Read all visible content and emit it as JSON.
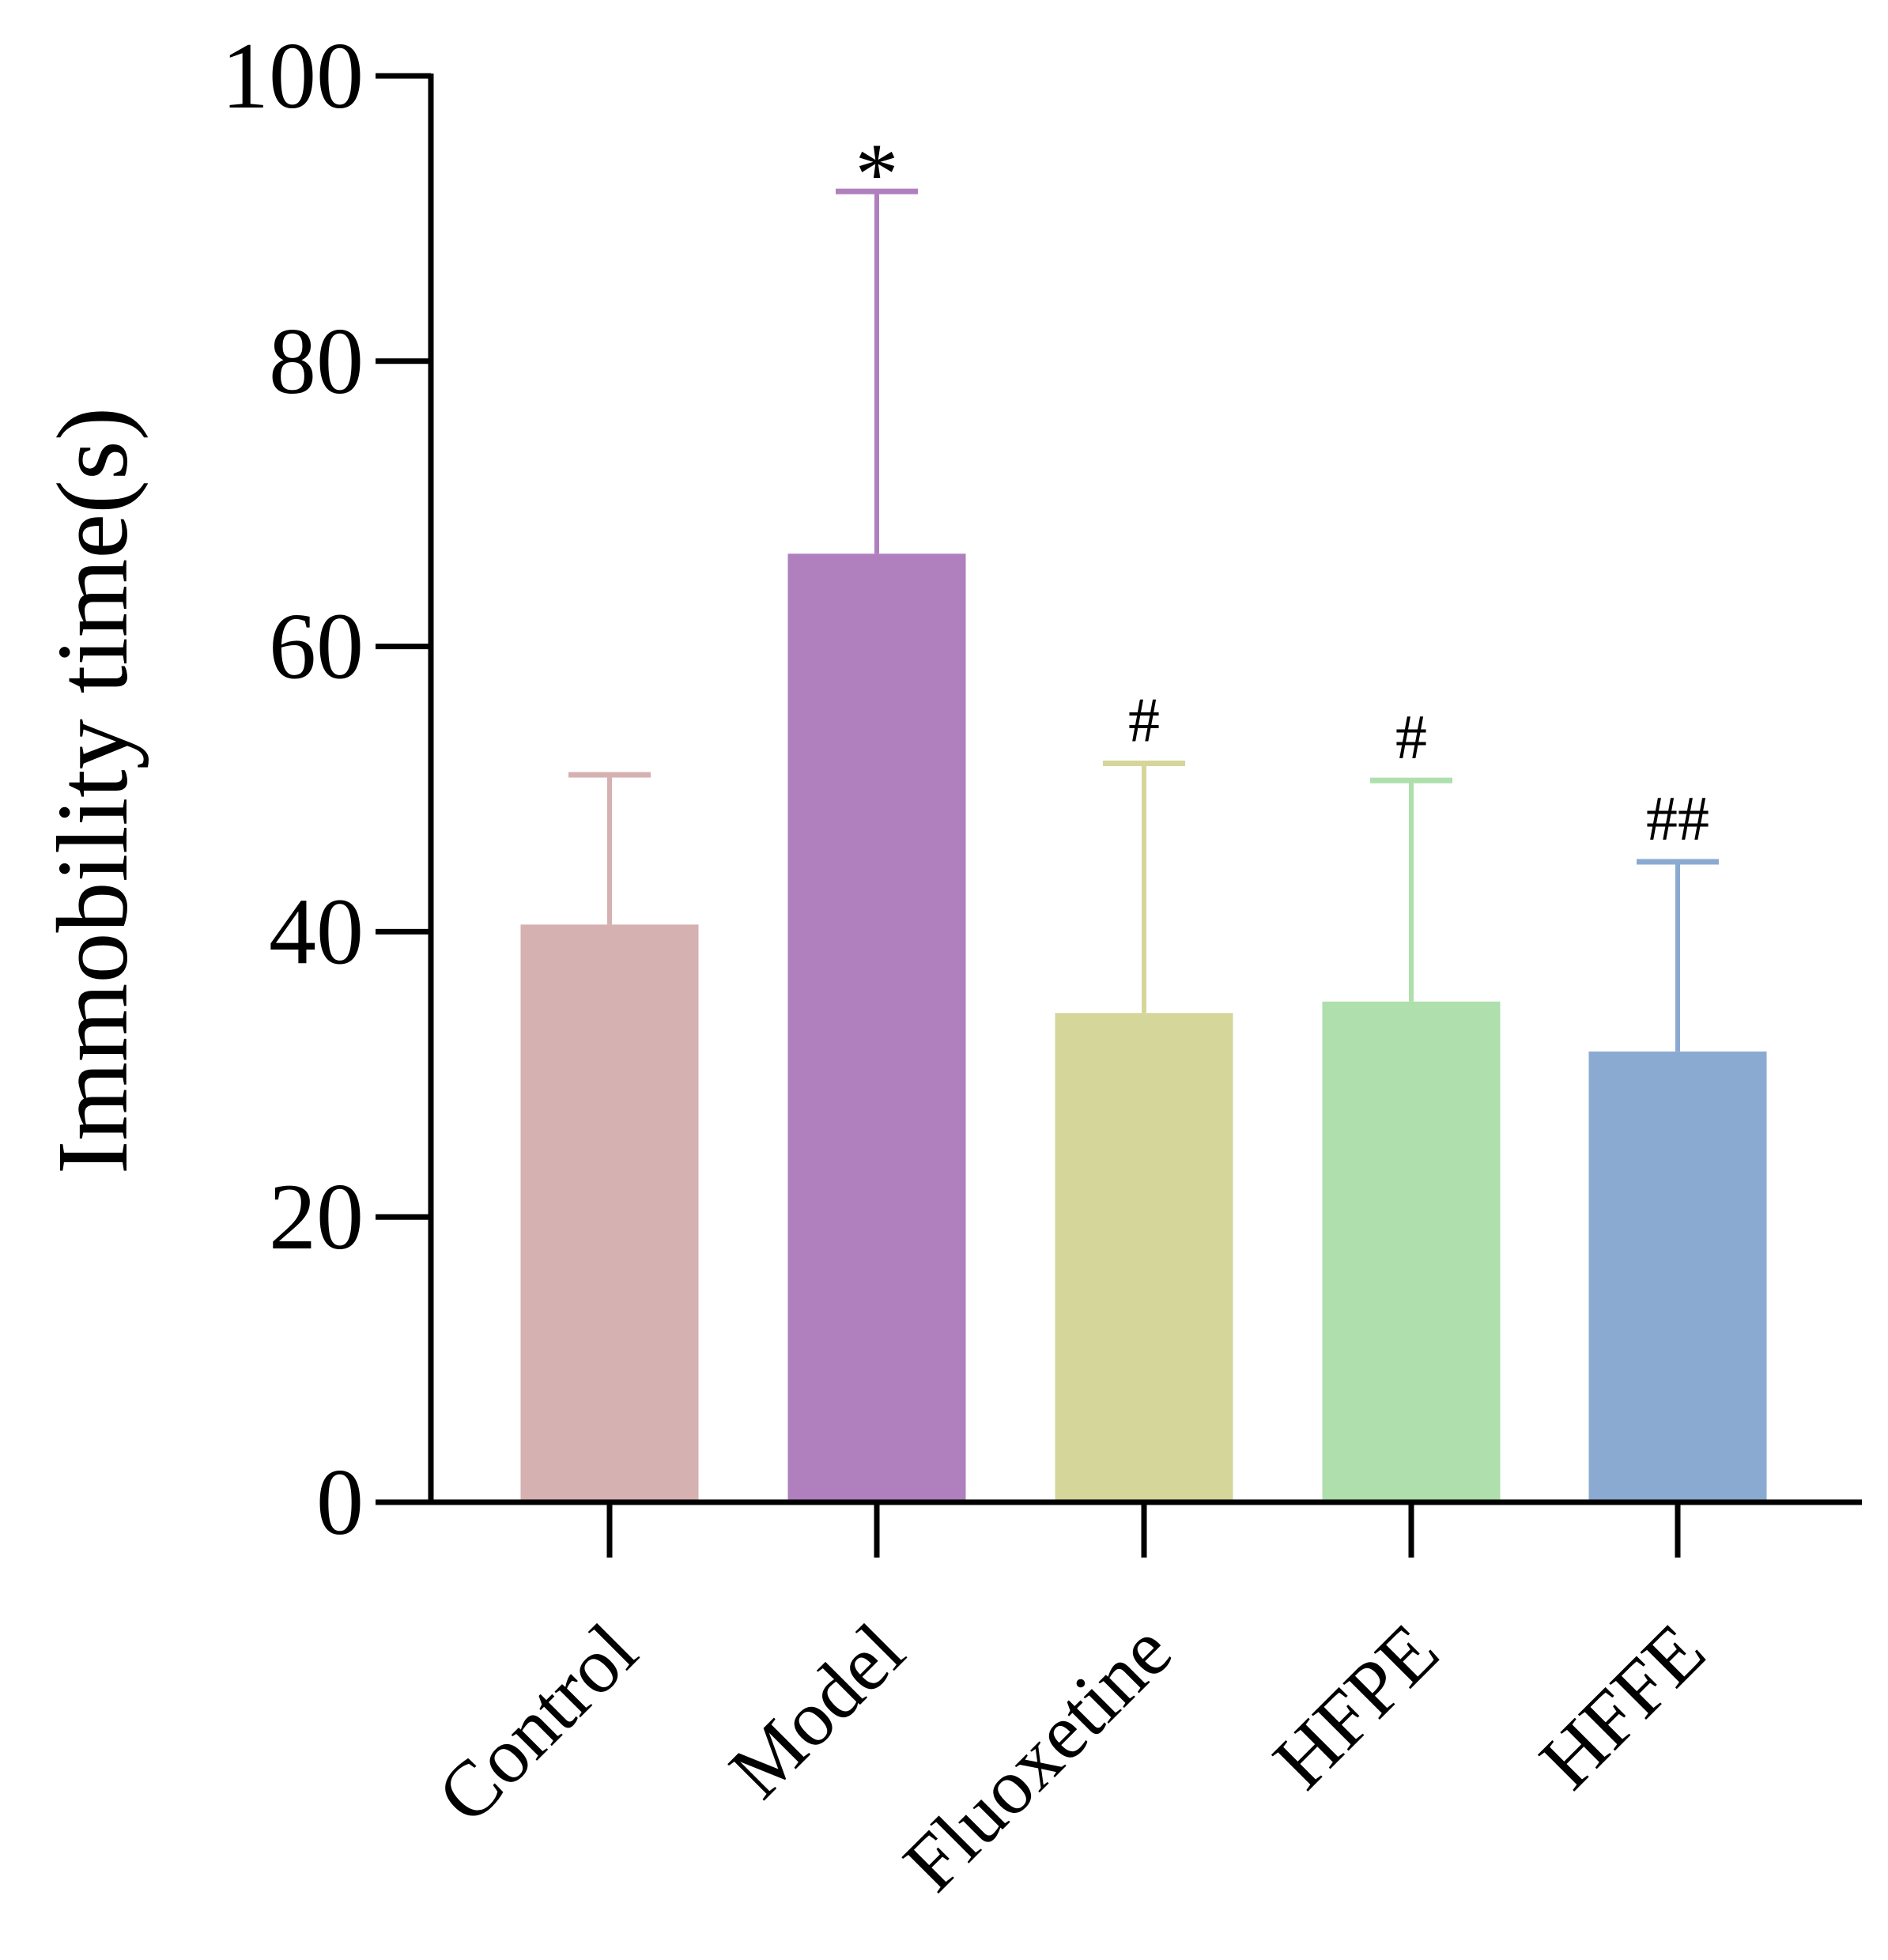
{
  "chart_data": {
    "type": "bar",
    "title": "",
    "xlabel": "",
    "ylabel": "Immobility time(s)",
    "ylim": [
      0,
      100
    ],
    "yticks": [
      "0",
      "20",
      "40",
      "60",
      "80",
      "100"
    ],
    "grid": false,
    "categories": [
      "Control",
      "Model",
      "Fluoxetine",
      "HFPE",
      "HFFE"
    ],
    "values": [
      40.5,
      66.5,
      34.3,
      35.1,
      31.6
    ],
    "error_upper": [
      51.0,
      91.9,
      51.8,
      50.6,
      44.9
    ],
    "annotations": [
      "",
      "*",
      "#",
      "#",
      "##"
    ],
    "colors": [
      "#D6B1B1",
      "#B07FBE",
      "#D5D699",
      "#AEDFAC",
      "#8BAAD2"
    ],
    "axis_color": "#000000"
  }
}
